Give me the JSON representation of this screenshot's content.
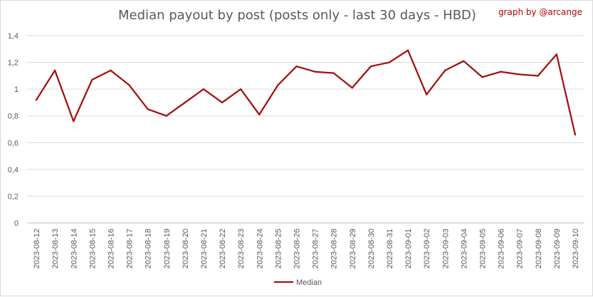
{
  "chart_data": {
    "type": "line",
    "title": "Median payout by post (posts only - last 30 days - HBD)",
    "credit": "graph by @arcange",
    "xlabel": "",
    "ylabel": "",
    "ylim": [
      0,
      1.4
    ],
    "yticks": [
      "0",
      "0,2",
      "0,4",
      "0,6",
      "0,8",
      "1",
      "1,2",
      "1,4"
    ],
    "grid": true,
    "legend_position": "bottom",
    "line_color": "#a50f0f",
    "x": [
      "2023-08-12",
      "2023-08-13",
      "2023-08-14",
      "2023-08-15",
      "2023-08-16",
      "2023-08-17",
      "2023-08-18",
      "2023-08-19",
      "2023-08-20",
      "2023-08-21",
      "2023-08-22",
      "2023-08-23",
      "2023-08-24",
      "2023-08-25",
      "2023-08-26",
      "2023-08-27",
      "2023-08-28",
      "2023-08-29",
      "2023-08-30",
      "2023-08-31",
      "2023-09-01",
      "2023-09-02",
      "2023-09-03",
      "2023-09-04",
      "2023-09-05",
      "2023-09-06",
      "2023-09-07",
      "2023-09-08",
      "2023-09-09",
      "2023-09-10"
    ],
    "series": [
      {
        "name": "Median",
        "values": [
          0.92,
          1.14,
          0.76,
          1.07,
          1.14,
          1.03,
          0.85,
          0.8,
          0.9,
          1.0,
          0.9,
          1.0,
          0.81,
          1.03,
          1.17,
          1.13,
          1.12,
          1.01,
          1.17,
          1.2,
          1.29,
          0.96,
          1.14,
          1.21,
          1.09,
          1.13,
          1.11,
          1.1,
          1.26,
          0.66
        ]
      }
    ]
  }
}
